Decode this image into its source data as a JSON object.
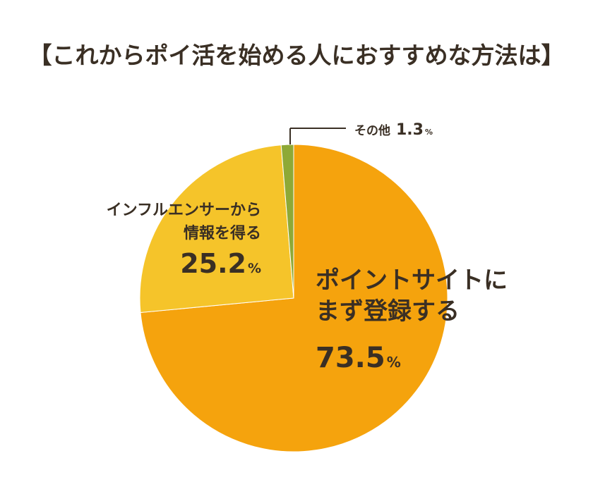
{
  "chart_data": {
    "type": "pie",
    "title": "【これからポイ活を始める人におすすめな方法は】",
    "slices": [
      {
        "name": "ポイントサイトにまず登録する",
        "line1": "ポイントサイトに",
        "line2": "まず登録する",
        "value": 73.5,
        "value_text": "73.5",
        "unit": "%",
        "color": "#f5a30d"
      },
      {
        "name": "インフルエンサーから情報を得る",
        "line1": "インフルエンサーから",
        "line2": "情報を得る",
        "value": 25.2,
        "value_text": "25.2",
        "unit": "%",
        "color": "#f5c42a"
      },
      {
        "name": "その他",
        "line1": "その他",
        "line2": "",
        "value": 1.3,
        "value_text": "1.3",
        "unit": "%",
        "color": "#8ea936"
      }
    ],
    "start_angle": "12 o'clock",
    "direction": "clockwise",
    "legend": "none"
  }
}
